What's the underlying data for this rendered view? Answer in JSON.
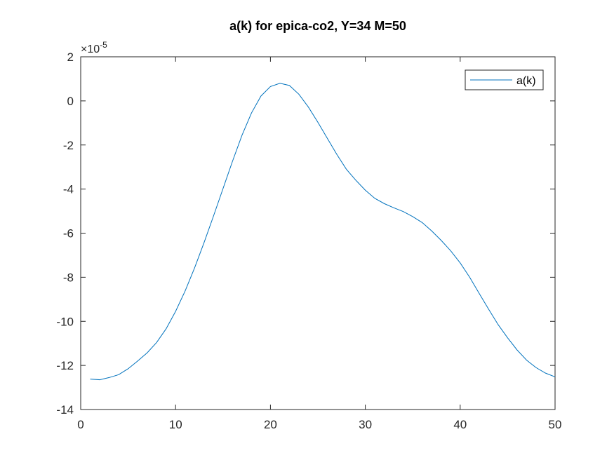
{
  "chart_data": {
    "type": "line",
    "title": "a(k) for epica-co2, Y=34 M=50",
    "xlabel": "",
    "ylabel": "",
    "xlim": [
      0,
      50
    ],
    "ylim": [
      -14,
      2
    ],
    "y_exponent_label": "×10",
    "y_exponent_power": "-5",
    "x_ticks": [
      0,
      10,
      20,
      30,
      40,
      50
    ],
    "x_tick_labels": [
      "0",
      "10",
      "20",
      "30",
      "40",
      "50"
    ],
    "y_ticks": [
      -14,
      -12,
      -10,
      -8,
      -6,
      -4,
      -2,
      0,
      2
    ],
    "y_tick_labels": [
      "-14",
      "-12",
      "-10",
      "-8",
      "-6",
      "-4",
      "-2",
      "0",
      "2"
    ],
    "grid": false,
    "legend_position": "top-right",
    "series": [
      {
        "name": "a(k)",
        "color": "#0072BD",
        "x": [
          1,
          2,
          3,
          4,
          5,
          6,
          7,
          8,
          9,
          10,
          11,
          12,
          13,
          14,
          15,
          16,
          17,
          18,
          19,
          20,
          21,
          22,
          23,
          24,
          25,
          26,
          27,
          28,
          29,
          30,
          31,
          32,
          33,
          34,
          35,
          36,
          37,
          38,
          39,
          40,
          41,
          42,
          43,
          44,
          45,
          46,
          47,
          48,
          49,
          50
        ],
        "values": [
          -12.62,
          -12.65,
          -12.55,
          -12.42,
          -12.15,
          -11.8,
          -11.43,
          -10.96,
          -10.34,
          -9.55,
          -8.63,
          -7.58,
          -6.43,
          -5.22,
          -3.98,
          -2.74,
          -1.56,
          -0.55,
          0.22,
          0.65,
          0.8,
          0.7,
          0.3,
          -0.28,
          -0.97,
          -1.7,
          -2.43,
          -3.1,
          -3.6,
          -4.05,
          -4.42,
          -4.66,
          -4.85,
          -5.02,
          -5.25,
          -5.52,
          -5.9,
          -6.33,
          -6.8,
          -7.35,
          -8.0,
          -8.73,
          -9.45,
          -10.15,
          -10.75,
          -11.3,
          -11.76,
          -12.1,
          -12.35,
          -12.52
        ]
      }
    ]
  }
}
